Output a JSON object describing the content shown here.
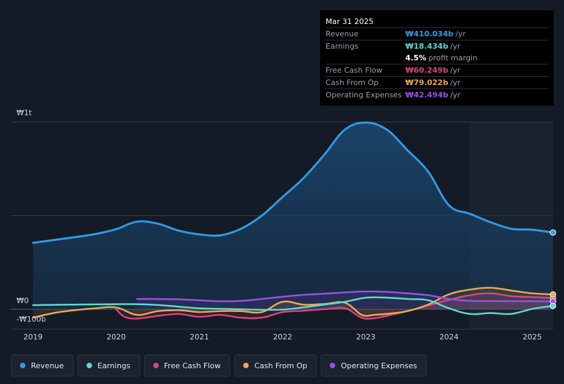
{
  "tooltip": {
    "date": "Mar 31 2025",
    "rows": [
      {
        "label": "Revenue",
        "value": "₩410.034b",
        "unit": "/yr",
        "color": "#2f9be4"
      },
      {
        "label": "Earnings",
        "value": "₩18.434b",
        "unit": "/yr",
        "color": "#5fd9cf"
      },
      {
        "margin_value": "4.5%",
        "margin_label": "profit margin"
      },
      {
        "label": "Free Cash Flow",
        "value": "₩60.249b",
        "unit": "/yr",
        "color": "#d9457e"
      },
      {
        "label": "Cash From Op",
        "value": "₩79.022b",
        "unit": "/yr",
        "color": "#e9a94e"
      },
      {
        "label": "Operating Expenses",
        "value": "₩42.494b",
        "unit": "/yr",
        "color": "#9b4fe8"
      }
    ]
  },
  "chart_data": {
    "type": "area",
    "y_unit": "₩ billions",
    "ylim": [
      -100,
      1000
    ],
    "y_ticks": [
      {
        "value": 1000,
        "label": "₩1t"
      },
      {
        "value": 0,
        "label": "₩0"
      },
      {
        "value": -100,
        "label": "-₩100b"
      }
    ],
    "x_ticks": [
      "2019",
      "2020",
      "2021",
      "2022",
      "2023",
      "2024",
      "2025"
    ],
    "xlim": [
      2019.0,
      2025.25
    ],
    "grid": "horizontal",
    "forecast_shade_from": 2024.25,
    "series": [
      {
        "name": "Revenue",
        "color": "#2f9be4",
        "fill": true,
        "x": [
          2019.0,
          2019.25,
          2019.5,
          2019.75,
          2020.0,
          2020.25,
          2020.5,
          2020.75,
          2021.0,
          2021.25,
          2021.5,
          2021.75,
          2022.0,
          2022.25,
          2022.5,
          2022.75,
          2023.0,
          2023.25,
          2023.5,
          2023.75,
          2024.0,
          2024.25,
          2024.5,
          2024.75,
          2025.0,
          2025.25
        ],
        "y": [
          355,
          370,
          385,
          402,
          428,
          468,
          457,
          420,
          400,
          395,
          430,
          500,
          600,
          700,
          825,
          960,
          997,
          960,
          850,
          735,
          555,
          510,
          465,
          430,
          425,
          410
        ]
      },
      {
        "name": "Earnings",
        "color": "#5fd9cf",
        "fill": false,
        "x": [
          2019.0,
          2019.5,
          2020.0,
          2020.25,
          2020.5,
          2020.75,
          2021.0,
          2021.5,
          2021.75,
          2022.0,
          2022.25,
          2022.5,
          2022.75,
          2023.0,
          2023.25,
          2023.5,
          2023.75,
          2024.0,
          2024.25,
          2024.5,
          2024.75,
          2025.0,
          2025.25
        ],
        "y": [
          22,
          25,
          27,
          27,
          23,
          14,
          5,
          0,
          -3,
          -2,
          10,
          25,
          40,
          62,
          62,
          55,
          48,
          5,
          -25,
          -20,
          -25,
          2,
          18
        ]
      },
      {
        "name": "Free Cash Flow",
        "color": "#d9457e",
        "fill": false,
        "x": [
          2020.0,
          2020.1,
          2020.25,
          2020.5,
          2020.75,
          2021.0,
          2021.25,
          2021.5,
          2021.75,
          2022.0,
          2022.25,
          2022.5,
          2022.75,
          2022.95,
          2023.1,
          2023.25,
          2023.5,
          2023.75,
          2024.0,
          2024.25,
          2024.5,
          2024.75,
          2025.0,
          2025.25
        ],
        "y": [
          0,
          -40,
          -50,
          -35,
          -25,
          -40,
          -30,
          -45,
          -45,
          -15,
          -8,
          0,
          5,
          -45,
          -48,
          -35,
          -10,
          20,
          50,
          75,
          85,
          70,
          65,
          60
        ]
      },
      {
        "name": "Cash From Op",
        "color": "#e9a94e",
        "fill": false,
        "x": [
          2019.0,
          2019.25,
          2019.5,
          2019.75,
          2020.0,
          2020.25,
          2020.5,
          2020.75,
          2021.0,
          2021.25,
          2021.5,
          2021.75,
          2022.0,
          2022.25,
          2022.5,
          2022.75,
          2022.95,
          2023.1,
          2023.25,
          2023.5,
          2023.75,
          2024.0,
          2024.25,
          2024.5,
          2024.75,
          2025.0,
          2025.25
        ],
        "y": [
          -45,
          -20,
          -5,
          5,
          10,
          -30,
          -10,
          -5,
          -15,
          -10,
          -10,
          -15,
          40,
          25,
          28,
          35,
          -30,
          -30,
          -25,
          -10,
          25,
          80,
          105,
          115,
          100,
          85,
          79
        ]
      },
      {
        "name": "Operating Expenses",
        "color": "#9b4fe8",
        "fill": false,
        "x": [
          2020.25,
          2020.5,
          2020.75,
          2021.0,
          2021.25,
          2021.5,
          2021.75,
          2022.0,
          2022.25,
          2022.5,
          2022.75,
          2023.0,
          2023.25,
          2023.5,
          2023.75,
          2024.0,
          2024.25,
          2024.5,
          2024.75,
          2025.0,
          2025.25
        ],
        "y": [
          55,
          55,
          53,
          48,
          43,
          45,
          55,
          67,
          77,
          83,
          90,
          95,
          93,
          85,
          75,
          55,
          45,
          44,
          43,
          43,
          42
        ]
      }
    ]
  },
  "legend": [
    {
      "label": "Revenue",
      "color": "#2f9be4"
    },
    {
      "label": "Earnings",
      "color": "#5fd9cf"
    },
    {
      "label": "Free Cash Flow",
      "color": "#d9457e"
    },
    {
      "label": "Cash From Op",
      "color": "#e9a94e"
    },
    {
      "label": "Operating Expenses",
      "color": "#9b4fe8"
    }
  ]
}
